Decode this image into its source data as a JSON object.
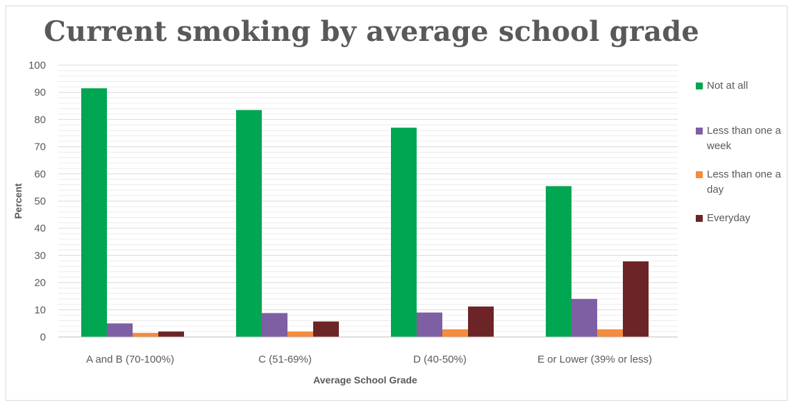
{
  "chart_data": {
    "type": "bar",
    "title": "Current smoking by average school grade",
    "xlabel": "Average School Grade",
    "ylabel": "Percent",
    "ylim": [
      0,
      100
    ],
    "yticks": [
      "0",
      "10",
      "20",
      "30",
      "40",
      "50",
      "60",
      "70",
      "80",
      "90",
      "100"
    ],
    "grid": true,
    "legend_position": "right",
    "categories": [
      "A and B (70-100%)",
      "C (51-69%)",
      "D (40-50%)",
      "E or Lower (39% or less)"
    ],
    "series": [
      {
        "name": "Not at all",
        "color": "#00a651",
        "values": [
          91.5,
          83.5,
          77,
          55.5
        ]
      },
      {
        "name": "Less than one a week",
        "color": "#7f5fa4",
        "values": [
          5,
          8.8,
          9,
          14
        ]
      },
      {
        "name": "Less than one a day",
        "color": "#f58b3c",
        "values": [
          1.5,
          2,
          2.8,
          2.8
        ]
      },
      {
        "name": "Everyday",
        "color": "#6d2427",
        "values": [
          2,
          5.7,
          11.2,
          27.8
        ]
      }
    ]
  }
}
